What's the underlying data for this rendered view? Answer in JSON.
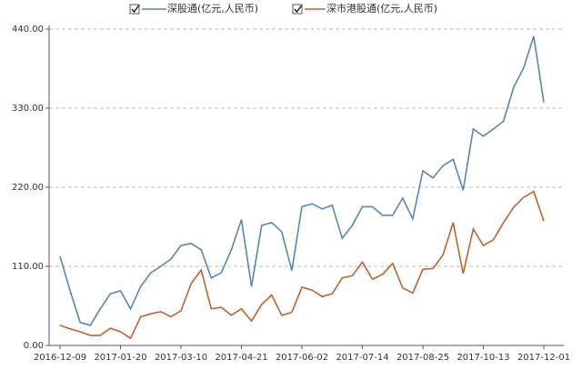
{
  "chart_data": {
    "type": "line",
    "categories": [
      "2016-12-09",
      null,
      null,
      null,
      null,
      null,
      "2017-01-20",
      null,
      null,
      null,
      null,
      null,
      "2017-03-10",
      null,
      null,
      null,
      null,
      null,
      "2017-04-21",
      null,
      null,
      null,
      null,
      null,
      "2017-06-02",
      null,
      null,
      null,
      null,
      null,
      "2017-07-14",
      null,
      null,
      null,
      null,
      null,
      "2017-08-25",
      null,
      null,
      null,
      null,
      null,
      "2017-10-13",
      null,
      null,
      null,
      null,
      null,
      "2017-12-01"
    ],
    "series": [
      {
        "name": "深股通(亿元,人民币)",
        "color": "#5688b0",
        "values": [
          124,
          76,
          32,
          28,
          51,
          72,
          76,
          51,
          82,
          101,
          110,
          120,
          139,
          142,
          133,
          94,
          101,
          133,
          175,
          82,
          167,
          171,
          158,
          104,
          193,
          197,
          190,
          195,
          149,
          167,
          193,
          193,
          181,
          181,
          205,
          176,
          243,
          233,
          250,
          259,
          216,
          301,
          291,
          301,
          312,
          359,
          386,
          430,
          338
        ]
      },
      {
        "name": "深市港股通(亿元,人民币)",
        "color": "#c0622d",
        "values": [
          28,
          23,
          19,
          14,
          14,
          24,
          19,
          10,
          40,
          44,
          47,
          40,
          48,
          86,
          105,
          51,
          53,
          42,
          51,
          34,
          57,
          70,
          42,
          46,
          81,
          77,
          68,
          72,
          94,
          97,
          116,
          92,
          99,
          114,
          80,
          73,
          106,
          107,
          126,
          171,
          100,
          162,
          139,
          147,
          171,
          192,
          206,
          214,
          173
        ]
      }
    ],
    "ylim": [
      0,
      440
    ],
    "yticks": [
      {
        "value": 0,
        "label": "0.00"
      },
      {
        "value": 110,
        "label": "110.00"
      },
      {
        "value": 220,
        "label": "220.00"
      },
      {
        "value": 330,
        "label": "330.00"
      },
      {
        "value": 440,
        "label": "440.00"
      }
    ],
    "grid": true
  }
}
